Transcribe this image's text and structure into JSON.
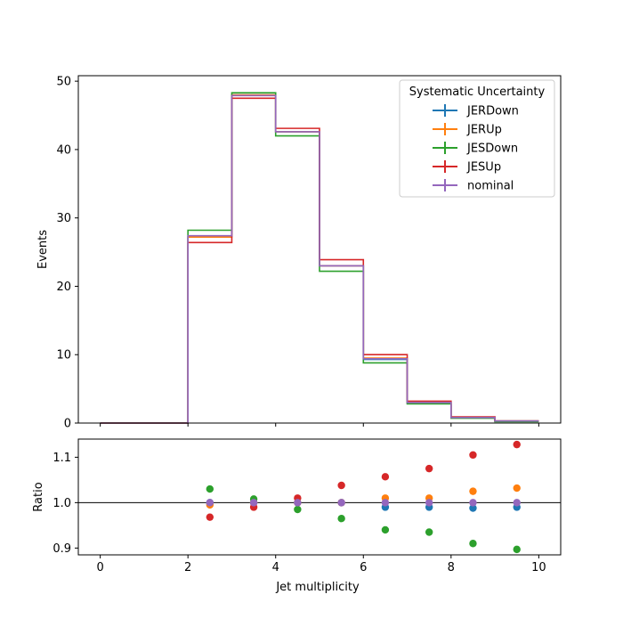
{
  "chart_data": [
    {
      "type": "line",
      "subtype": "step-histogram",
      "ylabel": "Events",
      "xlim": [
        -0.5,
        10.5
      ],
      "ylim": [
        0,
        50.8
      ],
      "y_ticks": [
        0,
        10,
        20,
        30,
        40,
        50
      ],
      "bin_edges": [
        0,
        1,
        2,
        3,
        4,
        5,
        6,
        7,
        8,
        9,
        10
      ],
      "legend": {
        "title": "Systematic Uncertainty",
        "placement": "top-right"
      },
      "series": [
        {
          "name": "JERDown",
          "color": "#1f77b4",
          "values": [
            0,
            0,
            27.3,
            48.0,
            42.6,
            23.0,
            9.3,
            2.9,
            0.8,
            0.3
          ]
        },
        {
          "name": "JERUp",
          "color": "#ff7f0e",
          "values": [
            0,
            0,
            27.2,
            48.0,
            42.6,
            23.0,
            9.5,
            3.0,
            0.8,
            0.3
          ]
        },
        {
          "name": "JESDown",
          "color": "#2ca02c",
          "values": [
            0,
            0,
            28.2,
            48.3,
            42.0,
            22.2,
            8.8,
            2.8,
            0.7,
            0.2
          ]
        },
        {
          "name": "JESUp",
          "color": "#d62728",
          "values": [
            0,
            0,
            26.4,
            47.5,
            43.1,
            23.9,
            10.0,
            3.2,
            0.9,
            0.3
          ]
        },
        {
          "name": "nominal",
          "color": "#9467bd",
          "values": [
            0,
            0,
            27.4,
            47.9,
            42.6,
            23.0,
            9.4,
            3.0,
            0.8,
            0.3
          ]
        }
      ]
    },
    {
      "type": "scatter",
      "xlabel": "Jet multiplicity",
      "ylabel": "Ratio",
      "xlim": [
        -0.5,
        10.5
      ],
      "ylim": [
        0.885,
        1.14
      ],
      "x_ticks": [
        0,
        2,
        4,
        6,
        8,
        10
      ],
      "y_ticks": [
        "0.9",
        "1.0",
        "1.1"
      ],
      "reference_line": 1.0,
      "x": [
        2.5,
        3.5,
        4.5,
        5.5,
        6.5,
        7.5,
        8.5,
        9.5
      ],
      "series": [
        {
          "name": "JERDown",
          "color": "#1f77b4",
          "values": [
            1.0,
            1.0,
            1.0,
            1.0,
            0.99,
            0.99,
            0.988,
            0.99
          ]
        },
        {
          "name": "JERUp",
          "color": "#ff7f0e",
          "values": [
            0.995,
            1.0,
            1.0,
            1.0,
            1.01,
            1.01,
            1.025,
            1.032
          ]
        },
        {
          "name": "JESDown",
          "color": "#2ca02c",
          "values": [
            1.03,
            1.008,
            0.985,
            0.965,
            0.94,
            0.935,
            0.91,
            0.897
          ]
        },
        {
          "name": "JESUp",
          "color": "#d62728",
          "values": [
            0.968,
            0.99,
            1.01,
            1.038,
            1.057,
            1.075,
            1.105,
            1.128
          ]
        },
        {
          "name": "nominal",
          "color": "#9467bd",
          "values": [
            1.0,
            1.0,
            1.0,
            1.0,
            1.0,
            1.0,
            1.0,
            1.0
          ]
        }
      ]
    }
  ]
}
